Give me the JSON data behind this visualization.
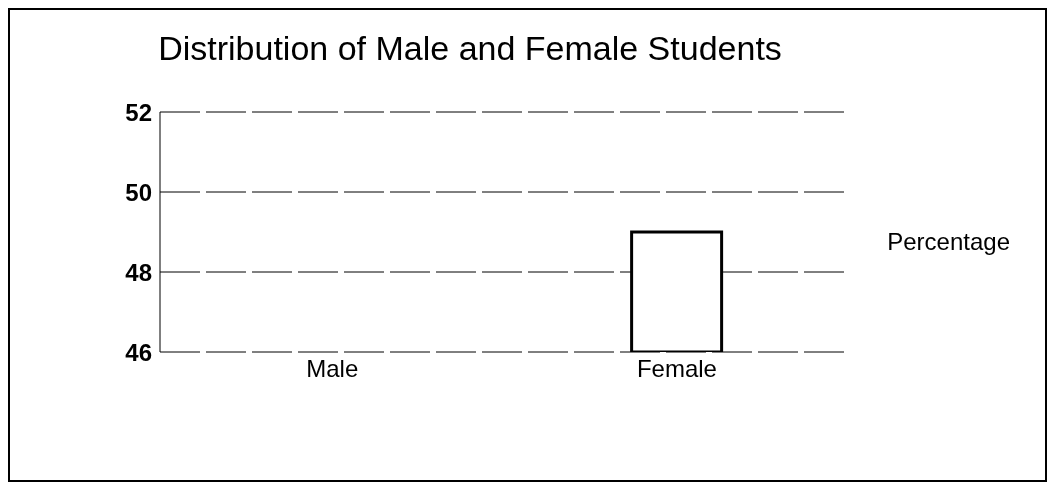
{
  "chart_data": {
    "type": "bar",
    "title": "Distribution of Male and Female Students",
    "categories": [
      "Male",
      "Female"
    ],
    "series": [
      {
        "name": "Percentage",
        "color": "#ffffff",
        "values": [
          null,
          49
        ]
      }
    ],
    "ylim": [
      46,
      52
    ],
    "yticks": [
      46,
      48,
      50,
      52
    ],
    "grid": "y",
    "legend": "right"
  }
}
